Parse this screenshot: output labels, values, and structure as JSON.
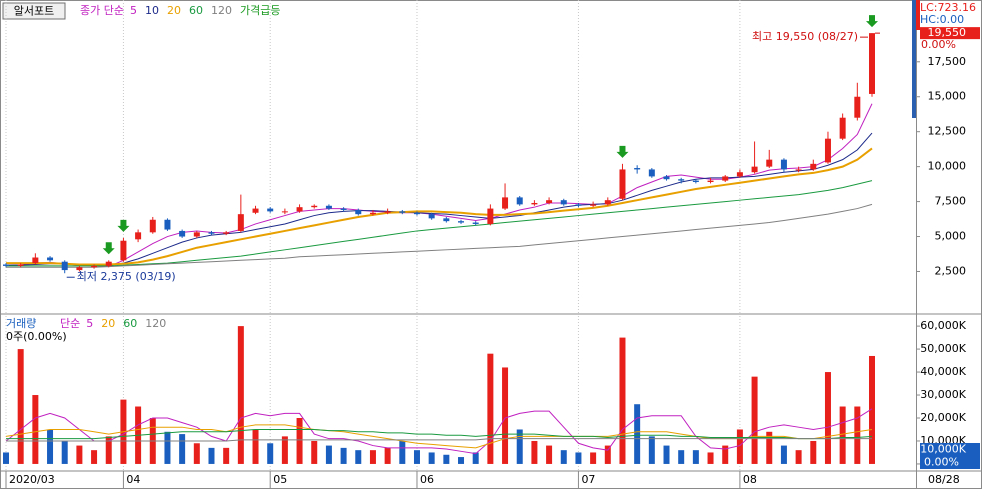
{
  "chart_data": [
    {
      "type": "candlestick",
      "title": "알서포트",
      "legend_prefix": "종가 단순",
      "signal_name": "가격급등",
      "categories": [
        "2020/03",
        null,
        null,
        null,
        null,
        null,
        null,
        null,
        "04",
        null,
        null,
        null,
        null,
        null,
        null,
        null,
        null,
        null,
        "05",
        null,
        null,
        null,
        null,
        null,
        null,
        null,
        null,
        null,
        "06",
        null,
        null,
        null,
        null,
        null,
        null,
        null,
        null,
        null,
        null,
        "07",
        null,
        null,
        null,
        null,
        null,
        null,
        null,
        null,
        null,
        null,
        "08",
        null,
        null,
        null,
        null,
        null,
        null,
        null,
        null,
        null
      ],
      "open": [
        3000,
        2900,
        3100,
        3500,
        3200,
        2600,
        2800,
        2900,
        3300,
        4800,
        5300,
        6200,
        5400,
        5000,
        5300,
        5200,
        5400,
        6700,
        7000,
        6800,
        6800,
        7100,
        7200,
        7000,
        6900,
        6600,
        6700,
        6800,
        6700,
        6600,
        6300,
        6100,
        6000,
        5900,
        7000,
        7800,
        7300,
        7400,
        7600,
        7300,
        7200,
        7300,
        7700,
        9900,
        9800,
        9300,
        9100,
        9000,
        8900,
        9000,
        9300,
        9600,
        10000,
        10500,
        9800,
        9800,
        10300,
        12000,
        13500,
        15200
      ],
      "high": [
        3100,
        3100,
        3800,
        3600,
        3300,
        2900,
        3000,
        3300,
        4900,
        5500,
        6400,
        6300,
        5500,
        5400,
        5400,
        5400,
        8000,
        7200,
        7100,
        7000,
        7300,
        7300,
        7300,
        7100,
        7000,
        6900,
        7000,
        6900,
        6800,
        6700,
        6400,
        6200,
        6100,
        7300,
        8800,
        7900,
        7600,
        7800,
        7700,
        7400,
        7500,
        7800,
        10200,
        10100,
        9900,
        9400,
        9200,
        9100,
        9200,
        9400,
        9800,
        11800,
        11200,
        10600,
        10000,
        10500,
        12500,
        13800,
        16000,
        19550
      ],
      "low": [
        2800,
        2800,
        3000,
        3200,
        2375,
        2500,
        2700,
        2800,
        3200,
        4600,
        5200,
        5400,
        4900,
        4900,
        5100,
        5100,
        5300,
        6600,
        6700,
        6600,
        6700,
        7000,
        6900,
        6800,
        6500,
        6500,
        6600,
        6600,
        6500,
        6200,
        6000,
        5900,
        5800,
        5800,
        6900,
        7200,
        7200,
        7300,
        7200,
        7100,
        7100,
        7200,
        7600,
        9500,
        9200,
        9000,
        8800,
        8800,
        8800,
        8900,
        9200,
        9500,
        9900,
        9600,
        9600,
        9700,
        10200,
        11900,
        13300,
        15000
      ],
      "close": [
        2900,
        3000,
        3500,
        3300,
        2600,
        2800,
        2900,
        3200,
        4700,
        5300,
        6200,
        5500,
        5000,
        5300,
        5200,
        5300,
        6600,
        7000,
        6800,
        6800,
        7100,
        7200,
        7000,
        6900,
        6600,
        6700,
        6800,
        6700,
        6600,
        6300,
        6100,
        6000,
        5900,
        7000,
        7800,
        7300,
        7400,
        7600,
        7300,
        7200,
        7300,
        7600,
        9800,
        9800,
        9300,
        9100,
        9000,
        8900,
        9000,
        9300,
        9600,
        10000,
        10500,
        9800,
        9800,
        10200,
        12000,
        13500,
        15000,
        19550
      ],
      "up_color": "#e8201c",
      "down_color": "#1a5fbf",
      "signal_color": "#1a9a20",
      "signals": [
        7,
        8,
        42,
        59
      ],
      "series": [
        {
          "name": "5",
          "color": "#c020c0",
          "values": [
            2950,
            2970,
            3100,
            3150,
            3050,
            2950,
            2900,
            2850,
            3300,
            3900,
            4500,
            5000,
            5300,
            5400,
            5300,
            5250,
            5500,
            5900,
            6200,
            6500,
            6800,
            6900,
            7000,
            7000,
            6900,
            6800,
            6750,
            6700,
            6700,
            6600,
            6450,
            6300,
            6150,
            6300,
            6600,
            6900,
            7100,
            7400,
            7400,
            7350,
            7300,
            7350,
            7900,
            8500,
            8900,
            9300,
            9400,
            9250,
            9100,
            9100,
            9250,
            9450,
            9750,
            9850,
            9900,
            10000,
            10500,
            11300,
            12300,
            14500
          ]
        },
        {
          "name": "10",
          "color": "#1c2a8a",
          "values": [
            2950,
            2960,
            3000,
            3050,
            3050,
            3000,
            2950,
            2950,
            3100,
            3400,
            3800,
            4200,
            4600,
            4900,
            5100,
            5200,
            5300,
            5500,
            5700,
            5900,
            6200,
            6500,
            6700,
            6800,
            6850,
            6850,
            6800,
            6750,
            6700,
            6650,
            6600,
            6500,
            6400,
            6300,
            6400,
            6500,
            6700,
            6900,
            7100,
            7250,
            7300,
            7350,
            7600,
            7950,
            8300,
            8600,
            8900,
            9100,
            9200,
            9200,
            9250,
            9300,
            9450,
            9600,
            9700,
            9800,
            10100,
            10500,
            11200,
            12400
          ]
        },
        {
          "name": "20",
          "color": "#e8a000",
          "values": [
            3100,
            3100,
            3100,
            3100,
            3050,
            3000,
            3000,
            3000,
            3050,
            3150,
            3350,
            3600,
            3900,
            4200,
            4400,
            4600,
            4800,
            5000,
            5200,
            5400,
            5600,
            5800,
            6000,
            6200,
            6400,
            6550,
            6700,
            6750,
            6800,
            6800,
            6750,
            6700,
            6600,
            6550,
            6550,
            6600,
            6650,
            6750,
            6850,
            6950,
            7050,
            7200,
            7400,
            7600,
            7800,
            8000,
            8200,
            8400,
            8550,
            8700,
            8850,
            9000,
            9150,
            9300,
            9450,
            9550,
            9750,
            10000,
            10500,
            11300
          ]
        },
        {
          "name": "60",
          "color": "#1a9a40",
          "values": [
            2900,
            2900,
            2900,
            2900,
            2900,
            2900,
            2900,
            2900,
            2950,
            3000,
            3050,
            3100,
            3200,
            3300,
            3400,
            3500,
            3600,
            3750,
            3900,
            4050,
            4200,
            4350,
            4500,
            4650,
            4800,
            4950,
            5100,
            5250,
            5400,
            5500,
            5600,
            5700,
            5800,
            5900,
            6000,
            6100,
            6200,
            6300,
            6400,
            6500,
            6600,
            6700,
            6800,
            6900,
            7000,
            7100,
            7200,
            7300,
            7400,
            7500,
            7600,
            7700,
            7800,
            7900,
            8000,
            8150,
            8300,
            8500,
            8750,
            9000
          ]
        },
        {
          "name": "120",
          "color": "#808080",
          "values": [
            2800,
            2800,
            2800,
            2800,
            2800,
            2800,
            2800,
            2850,
            2900,
            2950,
            3000,
            3050,
            3100,
            3150,
            3200,
            3250,
            3300,
            3350,
            3400,
            3450,
            3550,
            3600,
            3650,
            3700,
            3750,
            3800,
            3850,
            3900,
            3950,
            4000,
            4050,
            4100,
            4150,
            4200,
            4250,
            4300,
            4400,
            4500,
            4600,
            4700,
            4800,
            4900,
            5000,
            5100,
            5200,
            5300,
            5400,
            5500,
            5600,
            5700,
            5800,
            5900,
            6000,
            6150,
            6300,
            6450,
            6600,
            6800,
            7000,
            7300
          ]
        }
      ],
      "ylim": [
        -470,
        21920
      ],
      "yticks": [
        {
          "value": 2500,
          "label": "2,500"
        },
        {
          "value": 5000,
          "label": "5,000"
        },
        {
          "value": 7500,
          "label": "7,500"
        },
        {
          "value": 10000,
          "label": "10,000"
        },
        {
          "value": 12500,
          "label": "12,500"
        },
        {
          "value": 15000,
          "label": "15,000"
        },
        {
          "value": 17500,
          "label": "17,500"
        }
      ],
      "grid": true,
      "max_label": "최고 19,550 (08/27)",
      "min_label": "최저 2,375 (03/19)",
      "lc_label": "LC:723.16",
      "hc_label": "HC:0.00",
      "current_label": "19,550",
      "change_label": "0.00%"
    },
    {
      "type": "bar",
      "title": "거래량",
      "legend_prefix": "단순",
      "info": "0주(0.00%)",
      "values": [
        5000,
        50000,
        30000,
        15000,
        10000,
        8000,
        6000,
        12000,
        28000,
        25000,
        20000,
        14000,
        13000,
        9000,
        7000,
        7000,
        60000,
        15000,
        9000,
        12000,
        20000,
        10000,
        8000,
        7000,
        6000,
        6000,
        7000,
        10000,
        6000,
        5000,
        4000,
        3000,
        5000,
        48000,
        42000,
        15000,
        10000,
        8000,
        6000,
        5000,
        5000,
        8000,
        55000,
        26000,
        12000,
        8000,
        6000,
        6000,
        5000,
        8000,
        15000,
        38000,
        14000,
        8000,
        6000,
        10000,
        40000,
        25000,
        25000,
        47000
      ],
      "series": [
        {
          "name": "5",
          "color": "#c020c0",
          "values": [
            10000,
            15000,
            20000,
            22000,
            20000,
            15000,
            10000,
            10000,
            13000,
            17000,
            20000,
            20000,
            18000,
            16000,
            12000,
            10000,
            20000,
            22000,
            21000,
            22000,
            22000,
            13000,
            11000,
            11000,
            10000,
            8000,
            7000,
            7000,
            7000,
            7000,
            6500,
            5500,
            4500,
            10000,
            20000,
            22000,
            23000,
            23000,
            16000,
            9000,
            7000,
            6000,
            15000,
            20000,
            21000,
            21000,
            21000,
            12000,
            7000,
            6500,
            8000,
            14000,
            16000,
            17000,
            16000,
            15000,
            16000,
            18000,
            20000,
            24000
          ]
        },
        {
          "name": "20",
          "color": "#e8a000",
          "values": [
            12000,
            13000,
            14000,
            15000,
            15000,
            15000,
            14000,
            13000,
            14000,
            15000,
            16000,
            16000,
            16000,
            15000,
            15000,
            14000,
            16000,
            17000,
            17000,
            17000,
            16000,
            15000,
            14500,
            14000,
            13000,
            12000,
            11000,
            10000,
            9000,
            8500,
            8000,
            7500,
            7000,
            9000,
            11000,
            12000,
            12000,
            12000,
            12000,
            12000,
            12000,
            12000,
            13000,
            14000,
            14000,
            14000,
            13000,
            12000,
            11000,
            11000,
            11000,
            12000,
            12000,
            12000,
            11000,
            11000,
            12000,
            13000,
            14000,
            15000
          ]
        },
        {
          "name": "60",
          "color": "#1a9a40",
          "values": [
            11000,
            11000,
            11000,
            11000,
            11000,
            11000,
            11000,
            11500,
            12000,
            12500,
            13000,
            13500,
            14000,
            14000,
            14000,
            14000,
            14500,
            15000,
            15000,
            15000,
            15000,
            15000,
            14500,
            14500,
            14000,
            14000,
            13500,
            13500,
            13000,
            13000,
            12500,
            12500,
            12000,
            12500,
            13000,
            13000,
            13000,
            12500,
            12000,
            12000,
            12000,
            11500,
            12000,
            12500,
            12500,
            12500,
            12000,
            12000,
            11500,
            11500,
            11500,
            11500,
            11500,
            11500,
            11000,
            11000,
            11000,
            11500,
            11500,
            12000
          ]
        },
        {
          "name": "120",
          "color": "#808080",
          "values": [
            10000,
            10000,
            10000,
            10000,
            10000,
            10000,
            10000,
            10000,
            10000,
            10000,
            10000,
            10000,
            10000,
            10000,
            10000,
            10000,
            10500,
            10500,
            10500,
            10500,
            10500,
            10500,
            10500,
            10500,
            10500,
            10500,
            10500,
            10500,
            10500,
            10500,
            10500,
            10500,
            10500,
            11000,
            11000,
            11000,
            11000,
            11000,
            11000,
            11000,
            11000,
            11000,
            11000,
            11000,
            11000,
            11000,
            11000,
            11000,
            11000,
            11000,
            11000,
            11000,
            11000,
            11000,
            11000,
            11000,
            11000,
            11000,
            11000,
            11000
          ]
        }
      ],
      "ylim": [
        -3070,
        64400
      ],
      "yticks": [
        0,
        {
          "value": 10000,
          "label": "10,000K"
        },
        {
          "value": 20000,
          "label": "20,000K"
        },
        {
          "value": 30000,
          "label": "30,000K"
        },
        {
          "value": 40000,
          "label": "40,000K"
        },
        {
          "value": 50000,
          "label": "50,000K"
        },
        {
          "value": 60000,
          "label": "60,000K"
        }
      ],
      "current_label": "10,000K",
      "change_label": "0.00%",
      "last_date": "08/28"
    }
  ]
}
